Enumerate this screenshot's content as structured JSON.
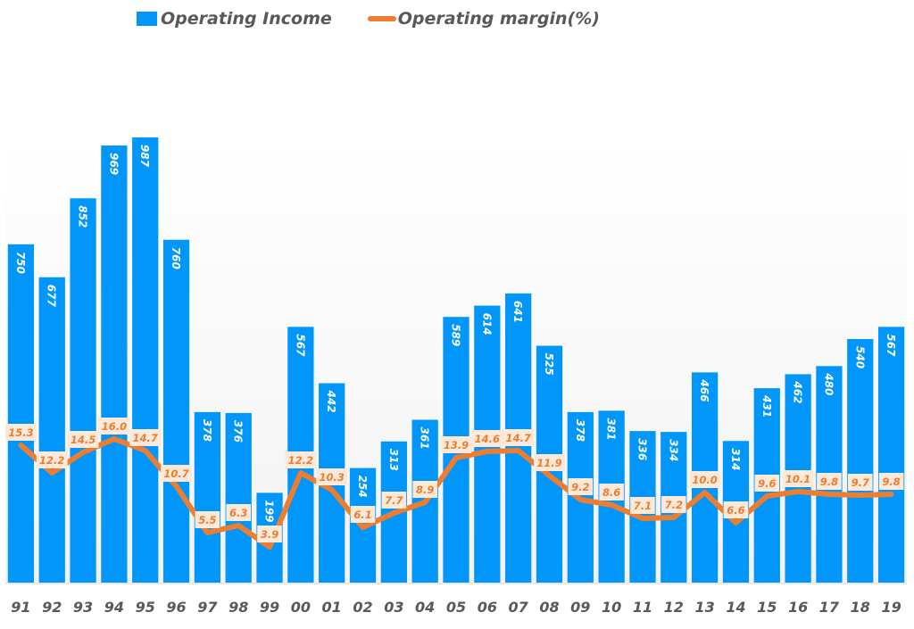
{
  "chart_data": {
    "type": "bar",
    "title": "",
    "xlabel": "",
    "ylabel": "",
    "categories": [
      "91",
      "92",
      "93",
      "94",
      "95",
      "96",
      "97",
      "98",
      "99",
      "00",
      "01",
      "02",
      "03",
      "04",
      "05",
      "06",
      "07",
      "08",
      "09",
      "10",
      "11",
      "12",
      "13",
      "14",
      "15",
      "16",
      "17",
      "18",
      "19"
    ],
    "series": [
      {
        "name": "Operating Income",
        "type": "bar",
        "color": "#0096fa",
        "values": [
          750,
          677,
          852,
          969,
          987,
          760,
          378,
          376,
          199,
          567,
          442,
          254,
          313,
          361,
          589,
          614,
          641,
          525,
          378,
          381,
          336,
          334,
          466,
          314,
          431,
          462,
          480,
          540,
          567
        ],
        "labels": [
          "750",
          "677",
          "852",
          "969",
          "987",
          "760",
          "378",
          "376",
          "199",
          "567",
          "442",
          "254",
          "313",
          "361",
          "589",
          "614",
          "641",
          "525",
          "378",
          "381",
          "336",
          "334",
          "466",
          "314",
          "431",
          "462",
          "480",
          "540",
          "567"
        ]
      },
      {
        "name": "Operating margin(%)",
        "type": "line",
        "color": "#ed7d31",
        "values": [
          15.3,
          12.2,
          14.5,
          16.0,
          14.7,
          10.7,
          5.5,
          6.3,
          3.9,
          12.2,
          10.3,
          6.1,
          7.7,
          8.9,
          13.9,
          14.6,
          14.7,
          11.9,
          9.2,
          8.6,
          7.1,
          7.2,
          10.0,
          6.6,
          9.6,
          10.1,
          9.8,
          9.7,
          9.8
        ],
        "labels": [
          "15.3",
          "12.2",
          "14.5",
          "16.0",
          "14.7",
          "10.7",
          "5.5",
          "6.3",
          "3.9",
          "12.2",
          "10.3",
          "6.1",
          "7.7",
          "8.9",
          "13.9",
          "14.6",
          "14.7",
          "11.9",
          "9.2",
          "8.6",
          "7.1",
          "7.2",
          "10.0",
          "6.6",
          "9.6",
          "10.1",
          "9.8",
          "9.7",
          "9.8"
        ]
      }
    ],
    "legend": {
      "position": "top-left",
      "entries": [
        "Operating Income",
        "Operating margin(%)"
      ]
    },
    "grid": false,
    "primary_ylim": [
      0,
      987
    ],
    "secondary_ylim": [
      0,
      16.0
    ]
  },
  "legend": {
    "bar_label": "Operating Income",
    "line_label": "Operating margin(%)"
  }
}
